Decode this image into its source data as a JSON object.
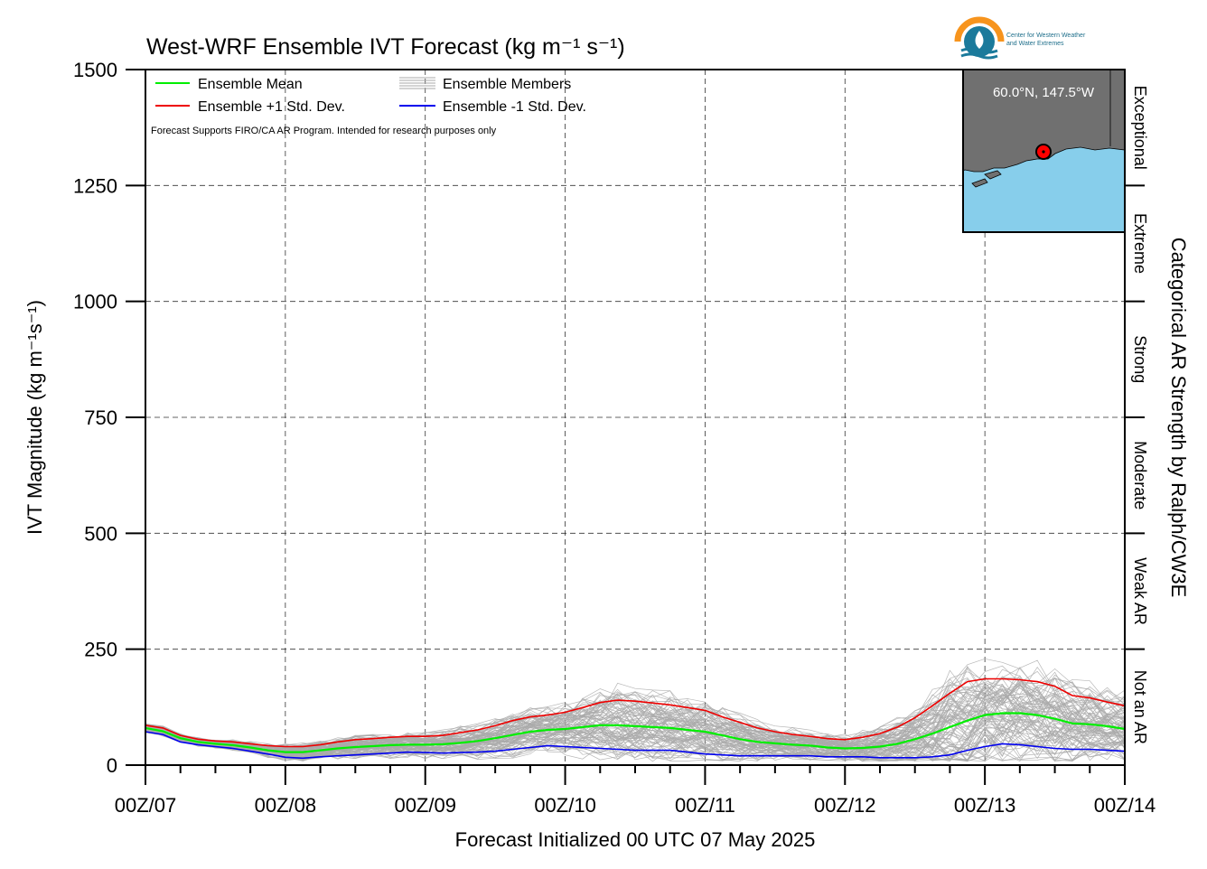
{
  "chart_data": {
    "type": "line",
    "title": "West-WRF Ensemble IVT Forecast (kg m⁻¹ s⁻¹)",
    "xlabel": "Forecast Initialized 00 UTC 07 May 2025",
    "ylabel": "IVT Magnitude (kg m⁻¹s⁻¹)",
    "right_label": "Categorical AR Strength by Ralph/CW3E",
    "ylim": [
      0,
      1500
    ],
    "yticks": [
      0,
      250,
      500,
      750,
      1000,
      1250,
      1500
    ],
    "xlim": [
      0,
      168
    ],
    "xtick_hours": [
      0,
      24,
      48,
      72,
      96,
      120,
      144,
      168
    ],
    "xtick_labels": [
      "00Z/07",
      "00Z/08",
      "00Z/09",
      "00Z/10",
      "00Z/11",
      "00Z/12",
      "00Z/13",
      "00Z/14"
    ],
    "grid": true,
    "legend_position": "top-left",
    "note": "Forecast Supports FIRO/CA AR Program. Intended for research purposes only",
    "categories_right": [
      {
        "label": "Not an AR",
        "min": 0,
        "max": 250
      },
      {
        "label": "Weak AR",
        "min": 250,
        "max": 500
      },
      {
        "label": "Moderate",
        "min": 500,
        "max": 750
      },
      {
        "label": "Strong",
        "min": 750,
        "max": 1000
      },
      {
        "label": "Extreme",
        "min": 1000,
        "max": 1250
      },
      {
        "label": "Exceptional",
        "min": 1250,
        "max": 1500
      }
    ],
    "x_hours": [
      0,
      3,
      6,
      9,
      12,
      15,
      18,
      21,
      24,
      27,
      30,
      33,
      36,
      39,
      42,
      45,
      48,
      51,
      54,
      57,
      60,
      63,
      66,
      69,
      72,
      75,
      78,
      81,
      84,
      87,
      90,
      93,
      96,
      99,
      102,
      105,
      108,
      111,
      114,
      117,
      120,
      123,
      126,
      129,
      132,
      135,
      138,
      141,
      144,
      147,
      150,
      153,
      156,
      159,
      162,
      165,
      168
    ],
    "series": [
      {
        "name": "Ensemble Mean",
        "color": "#00ee00",
        "values": [
          80,
          73,
          58,
          50,
          46,
          43,
          38,
          32,
          28,
          28,
          32,
          36,
          39,
          41,
          43,
          44,
          44,
          45,
          48,
          52,
          58,
          65,
          72,
          76,
          78,
          82,
          86,
          86,
          84,
          82,
          80,
          76,
          72,
          64,
          56,
          50,
          47,
          44,
          42,
          38,
          36,
          37,
          40,
          46,
          56,
          68,
          82,
          96,
          108,
          112,
          112,
          108,
          100,
          90,
          88,
          84,
          78
        ]
      },
      {
        "name": "Ensemble +1 Std. Dev.",
        "color": "#ee0000",
        "values": [
          86,
          80,
          64,
          56,
          52,
          50,
          46,
          42,
          40,
          40,
          44,
          50,
          55,
          57,
          60,
          62,
          62,
          64,
          70,
          76,
          85,
          96,
          104,
          108,
          114,
          124,
          135,
          140,
          138,
          134,
          130,
          124,
          118,
          104,
          92,
          80,
          72,
          66,
          62,
          57,
          55,
          60,
          68,
          82,
          102,
          128,
          155,
          180,
          186,
          186,
          184,
          180,
          170,
          150,
          145,
          136,
          128
        ]
      },
      {
        "name": "Ensemble -1 Std. Dev.",
        "color": "#0000ee",
        "values": [
          72,
          66,
          50,
          44,
          40,
          36,
          30,
          24,
          17,
          15,
          18,
          20,
          22,
          24,
          26,
          28,
          27,
          26,
          27,
          28,
          30,
          34,
          38,
          42,
          40,
          38,
          36,
          34,
          32,
          32,
          32,
          28,
          24,
          22,
          20,
          20,
          20,
          20,
          20,
          18,
          18,
          18,
          16,
          16,
          16,
          18,
          22,
          32,
          40,
          46,
          44,
          40,
          36,
          34,
          34,
          32,
          30
        ]
      }
    ],
    "members_label": "Ensemble Members",
    "members_color": "#aaaaaa",
    "inset": {
      "label": "60.0°N, 147.5°W",
      "land_color": "#707070",
      "ocean_color": "#87ceeb",
      "marker_color": "#ff0000"
    },
    "logo": {
      "line1": "Center for Western Weather",
      "line2": "and Water Extremes",
      "color_orange": "#f7941d",
      "color_teal": "#1b7a9b"
    }
  }
}
